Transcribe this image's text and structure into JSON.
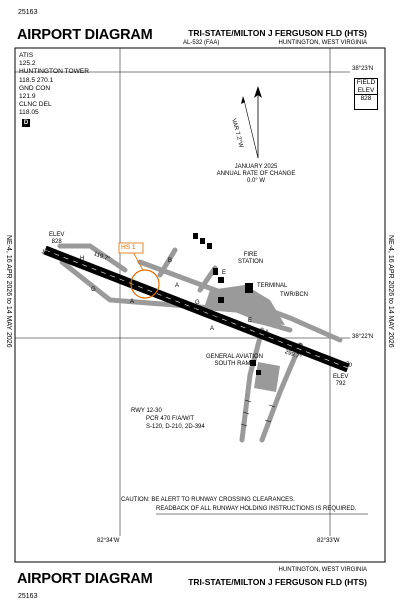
{
  "header": {
    "id_code": "25163",
    "title": "AIRPORT DIAGRAM",
    "airport_name": "TRI-STATE/MILTON J FERGUSON FLD (HTS)",
    "location_code": "AL-532 (FAA)",
    "city": "HUNTINGTON, WEST VIRGINIA"
  },
  "frequencies": [
    {
      "label": "ATIS"
    },
    {
      "label": "125.2"
    },
    {
      "label": "HUNTINGTON TOWER"
    },
    {
      "label": "118.5  270.1"
    },
    {
      "label": "GND CON"
    },
    {
      "label": "121.9"
    },
    {
      "label": "CLNC DEL"
    },
    {
      "label": "118.05"
    }
  ],
  "badge_d": "D",
  "field_elev": {
    "line1": "FIELD",
    "line2": "ELEV",
    "value": "828"
  },
  "coordinates": {
    "lat_top": "38°23'N",
    "lat_mid": "38°22'N",
    "lon_left": "82°34'W",
    "lon_right": "82°33'W"
  },
  "validity": {
    "left": "NE-4, 16 APR 2026 to 14 MAY 2026",
    "right": "NE-4, 16 APR 2026 to 14 MAY 2026"
  },
  "variation": {
    "var_label": "VAR 7.2°W",
    "line1": "JANUARY 2025",
    "line2": "ANNUAL RATE OF CHANGE",
    "line3": "0.0° W"
  },
  "runway": {
    "end_left": "12",
    "end_right": "30",
    "dimensions": "7017 X 150",
    "heading_left": "119.7°",
    "heading_right": "299.7°",
    "elev_left_label": "ELEV",
    "elev_left_value": "828",
    "elev_right_label": "ELEV",
    "elev_right_value": "792"
  },
  "hotspot": "HS 1",
  "taxiway_labels": [
    "A",
    "A",
    "A",
    "A",
    "G",
    "G",
    "E",
    "E",
    "B",
    "B",
    "H"
  ],
  "labels": {
    "fire_station_1": "FIRE",
    "fire_station_2": "STATION",
    "terminal": "TERMINAL",
    "twr_bcn": "TWR/BCN",
    "ga_ramp_1": "GENERAL AVIATION",
    "ga_ramp_2": "SOUTH RAMP"
  },
  "runway_info": {
    "line1": "RWY 12-30",
    "line2": "PCR 470 F/A/W/T",
    "line3": "S-120, D-210, 2D-394"
  },
  "caution": {
    "line1": "CAUTION: BE ALERT TO RUNWAY CROSSING CLEARANCES.",
    "line2": "READBACK OF ALL RUNWAY HOLDING INSTRUCTIONS IS REQUIRED."
  },
  "footer": {
    "city": "HUNTINGTON, WEST VIRGINIA",
    "title": "AIRPORT DIAGRAM",
    "airport_name": "TRI-STATE/MILTON J FERGUSON FLD (HTS)",
    "id_code": "25163"
  }
}
